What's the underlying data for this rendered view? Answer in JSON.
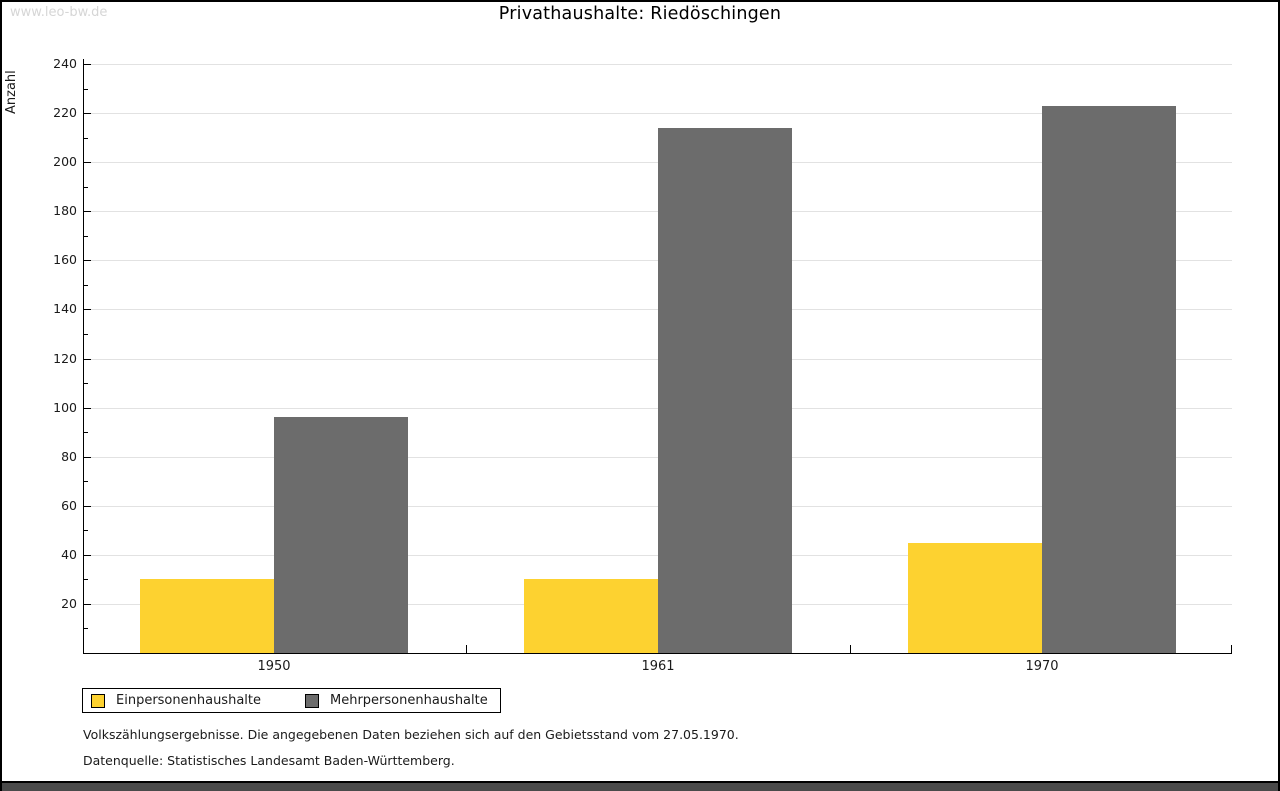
{
  "watermark": "www.leo-bw.de",
  "title": "Privathaushalte:  Riedöschingen",
  "chart_data": {
    "type": "bar",
    "title": "Privathaushalte: Riedöschingen",
    "categories": [
      "1950",
      "1961",
      "1970"
    ],
    "series": [
      {
        "name": "Einpersonenhaushalte",
        "color": "#fdd230",
        "values": [
          30,
          30,
          45
        ]
      },
      {
        "name": "Mehrpersonenhaushalte",
        "color": "#6c6c6c",
        "values": [
          96,
          214,
          223
        ]
      }
    ],
    "xlabel": "",
    "ylabel": "Anzahl",
    "ylim": [
      0,
      240
    ],
    "ytick_major": 20,
    "ytick_minor": 10,
    "grid": true,
    "legend_position": "bottom-left"
  },
  "footnotes": [
    "Volkszählungsergebnisse. Die angegebenen Daten beziehen sich auf den Gebietsstand vom 27.05.1970.",
    "Datenquelle: Statistisches Landesamt Baden-Württemberg."
  ],
  "colors": {
    "grid": "#e2e2e2",
    "axis": "#000000",
    "watermark": "#d6d6d6",
    "frame_border": "#000000",
    "bottom_bar": "#4a4a4a",
    "background": "#ffffff"
  }
}
